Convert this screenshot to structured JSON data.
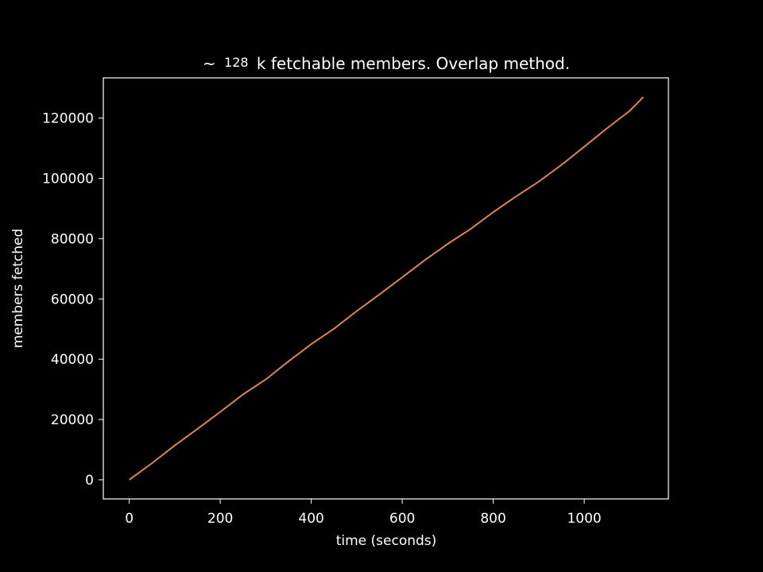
{
  "figure": {
    "background": "#000000",
    "foreground": "#ffffff"
  },
  "chart_data": {
    "type": "line",
    "title_prefix": "~",
    "title_number": "128",
    "title_suffix": "k fetchable members. Overlap method.",
    "xlabel": "time (seconds)",
    "ylabel": "members fetched",
    "xlim": [
      -57,
      1185
    ],
    "ylim": [
      -6350,
      133350
    ],
    "xticks": [
      0,
      200,
      400,
      600,
      800,
      1000
    ],
    "yticks": [
      0,
      20000,
      40000,
      60000,
      80000,
      100000,
      120000
    ],
    "grid": false,
    "legend": "none",
    "series": [
      {
        "color": "#dd8452",
        "x": [
          0,
          50,
          100,
          150,
          200,
          250,
          300,
          350,
          400,
          450,
          500,
          550,
          600,
          650,
          700,
          750,
          800,
          850,
          900,
          950,
          1000,
          1050,
          1100,
          1130
        ],
        "y": [
          0,
          5500,
          11400,
          16900,
          22500,
          28300,
          33300,
          39300,
          45000,
          50100,
          56000,
          61500,
          67200,
          72900,
          78300,
          83200,
          88800,
          94000,
          98900,
          104500,
          110500,
          116600,
          122400,
          127000
        ]
      }
    ]
  }
}
